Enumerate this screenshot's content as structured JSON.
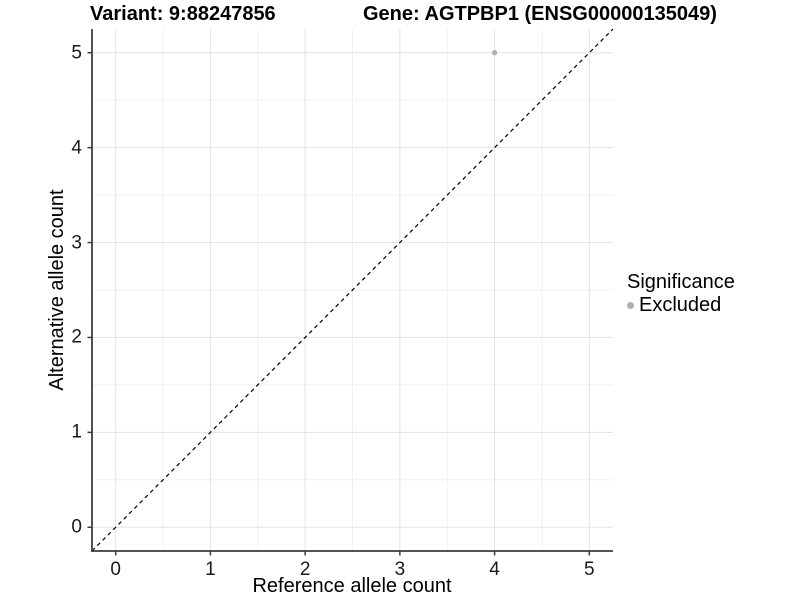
{
  "chart_data": {
    "type": "scatter",
    "title_left": "Variant: 9:88247856",
    "title_right": "Gene: AGTPBP1 (ENSG00000135049)",
    "xlabel": "Reference allele count",
    "ylabel": "Alternative allele count",
    "xlim": [
      -0.25,
      5.25
    ],
    "ylim": [
      -0.25,
      5.25
    ],
    "x_ticks": [
      0,
      1,
      2,
      3,
      4,
      5
    ],
    "y_ticks": [
      0,
      1,
      2,
      3,
      4,
      5
    ],
    "x_minor_ticks": [
      0.5,
      1.5,
      2.5,
      3.5,
      4.5
    ],
    "y_minor_ticks": [
      0.5,
      1.5,
      2.5,
      3.5,
      4.5
    ],
    "grid": true,
    "points": [
      {
        "x": 4,
        "y": 5,
        "series": "Excluded",
        "color": "#b0b0b0",
        "radius": 2.6
      }
    ],
    "reference_line": {
      "type": "abline",
      "slope": 1,
      "intercept": 0,
      "style": "dashed",
      "color": "#000000"
    },
    "legend": {
      "title": "Significance",
      "position": "right",
      "items": [
        {
          "label": "Excluded",
          "color": "#b0b0b0"
        }
      ]
    },
    "colors": {
      "background": "#ffffff",
      "grid_major": "#e3e3e3",
      "grid_minor": "#f1f1f1",
      "axis_line": "#3c3c3c",
      "tick_text": "#1a1a1a"
    }
  }
}
